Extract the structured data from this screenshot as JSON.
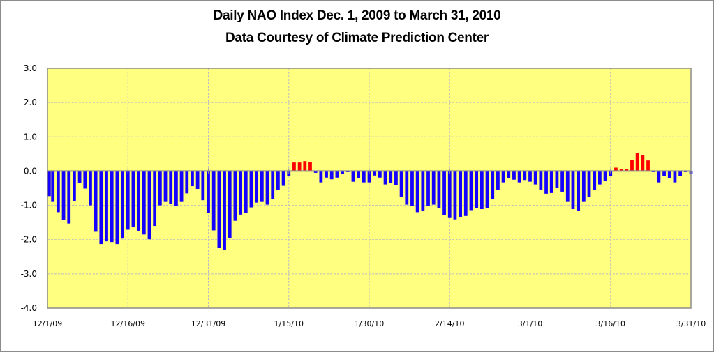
{
  "chart_data": {
    "type": "bar",
    "title": "Daily NAO Index Dec. 1, 2009 to March 31, 2010",
    "subtitle": "Data Courtesy of Climate Prediction Center",
    "xlabel": "",
    "ylabel": "",
    "ylim": [
      -4.0,
      3.0
    ],
    "yticks": [
      "3.0",
      "2.0",
      "1.0",
      "0.0",
      "-1.0",
      "-2.0",
      "-3.0",
      "-4.0"
    ],
    "ytick_values": [
      3,
      2,
      1,
      0,
      -1,
      -2,
      -3,
      -4
    ],
    "xticks": [
      "12/1/09",
      "12/16/09",
      "12/31/09",
      "1/15/10",
      "1/30/10",
      "2/14/10",
      "3/1/10",
      "3/16/10",
      "3/31/10"
    ],
    "xtick_day_index": [
      0,
      15,
      30,
      45,
      60,
      75,
      90,
      105,
      120
    ],
    "x_start": "12/1/09",
    "x_end": "3/31/10",
    "grid": true,
    "legend": "none",
    "colors": {
      "positive": "#ff0000",
      "negative": "#1400ff",
      "plot_background": "#ffff80",
      "gridline": "#bdbdbd",
      "axis": "#8c8c8c"
    },
    "values": [
      -0.73,
      -0.9,
      -1.2,
      -1.43,
      -1.53,
      -0.88,
      -0.34,
      -0.51,
      -1.0,
      -1.77,
      -2.13,
      -2.05,
      -2.07,
      -2.13,
      -1.97,
      -1.71,
      -1.64,
      -1.74,
      -1.85,
      -1.99,
      -1.6,
      -1.0,
      -0.9,
      -0.95,
      -1.03,
      -0.9,
      -0.65,
      -0.44,
      -0.52,
      -0.85,
      -1.22,
      -1.73,
      -2.25,
      -2.29,
      -1.96,
      -1.45,
      -1.27,
      -1.22,
      -1.06,
      -0.92,
      -0.9,
      -0.98,
      -0.81,
      -0.55,
      -0.43,
      -0.15,
      0.25,
      0.25,
      0.29,
      0.27,
      -0.05,
      -0.33,
      -0.19,
      -0.24,
      -0.19,
      -0.08,
      -0.03,
      -0.31,
      -0.21,
      -0.33,
      -0.33,
      -0.13,
      -0.19,
      -0.39,
      -0.35,
      -0.41,
      -0.76,
      -0.98,
      -1.02,
      -1.2,
      -1.15,
      -1.02,
      -0.98,
      -1.09,
      -1.29,
      -1.37,
      -1.41,
      -1.35,
      -1.31,
      -1.14,
      -1.07,
      -1.11,
      -1.07,
      -0.82,
      -0.54,
      -0.33,
      -0.21,
      -0.25,
      -0.33,
      -0.26,
      -0.31,
      -0.39,
      -0.54,
      -0.66,
      -0.64,
      -0.5,
      -0.6,
      -0.9,
      -1.11,
      -1.15,
      -0.9,
      -0.76,
      -0.56,
      -0.39,
      -0.28,
      -0.15,
      0.1,
      0.06,
      0.06,
      0.33,
      0.53,
      0.47,
      0.31,
      -0.03,
      -0.33,
      -0.15,
      -0.21,
      -0.33,
      -0.15,
      -0.03,
      -0.08
    ]
  }
}
